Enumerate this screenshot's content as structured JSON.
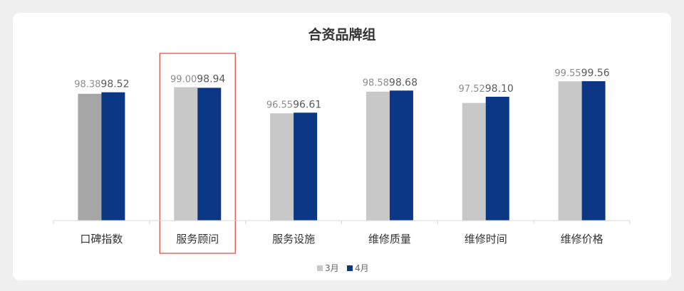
{
  "chart_data": {
    "type": "bar",
    "title": "合资品牌组",
    "categories": [
      "口碑指数",
      "服务顾问",
      "服务设施",
      "维修质量",
      "维修时间",
      "维修价格"
    ],
    "series": [
      {
        "name": "3月",
        "values": [
          98.38,
          99.0,
          96.55,
          98.58,
          97.52,
          99.55
        ],
        "color": "#c8c8c8"
      },
      {
        "name": "4月",
        "values": [
          98.52,
          98.94,
          96.61,
          98.68,
          98.1,
          99.56
        ],
        "color": "#0c3785"
      }
    ],
    "value_labels": [
      [
        "98.38",
        "99.00",
        "96.55",
        "98.58",
        "97.52",
        "99.55"
      ],
      [
        "98.52",
        "98.94",
        "96.61",
        "98.68",
        "98.10",
        "99.56"
      ]
    ],
    "first_bar_color": "#a6a6a6",
    "highlight_category": "服务顾问",
    "highlight_color": "#d9473d",
    "legend_position": "bottom",
    "grid": false
  }
}
